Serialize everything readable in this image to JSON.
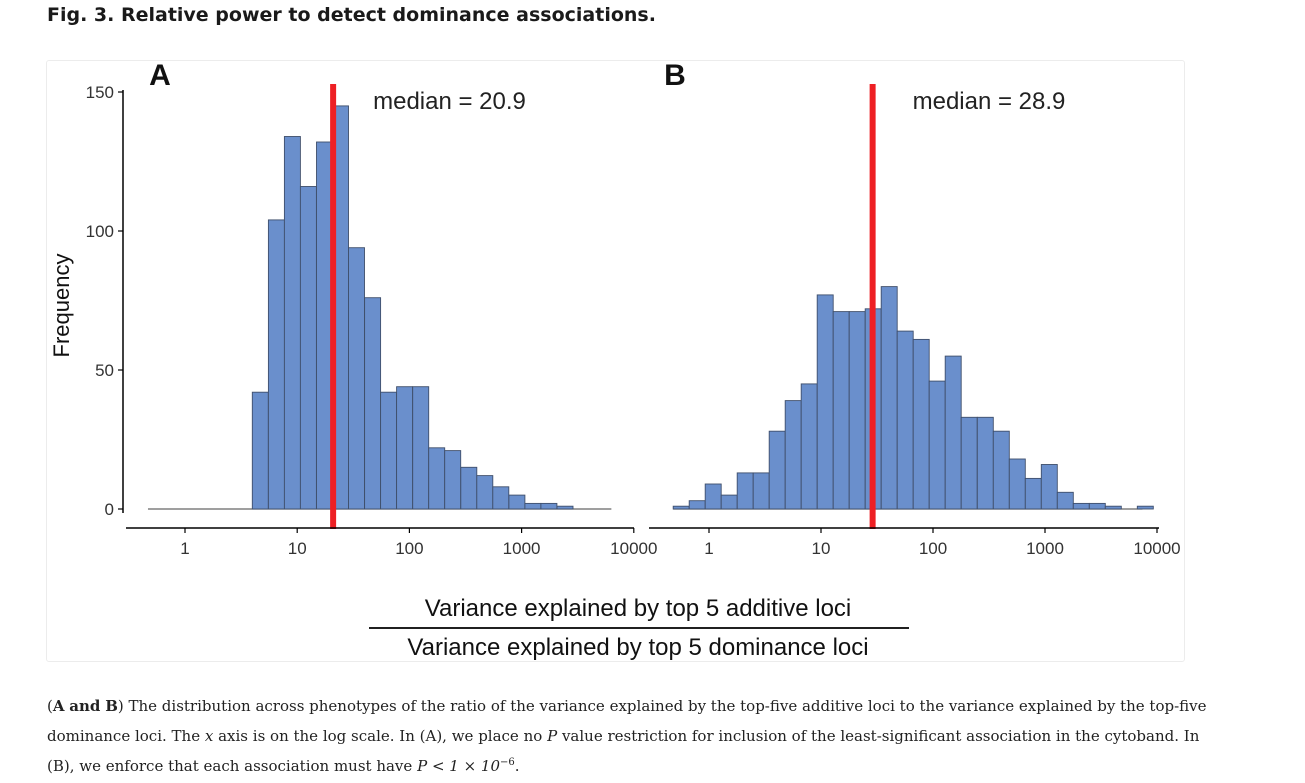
{
  "figure": {
    "title": "Fig. 3. Relative power to detect dominance associations."
  },
  "chart_data": {
    "type": "histogram",
    "ylabel": "Frequency",
    "xlabel_numerator": "Variance explained by top 5 additive loci",
    "xlabel_denominator": "Variance explained by top 5 dominance loci",
    "xscale": "log10",
    "ylim": [
      0,
      150
    ],
    "yticks": [
      0,
      50,
      100,
      150
    ],
    "bar_color": "#6a8fcc",
    "median_color": "#ee2024",
    "panels": [
      {
        "label": "A",
        "median": 20.9,
        "median_label": "median = 20.9",
        "xrange_log10": [
          -0.55,
          4.1
        ],
        "xticks": [
          "1",
          "10",
          "100",
          "1000",
          "10000"
        ],
        "baseline_log10": [
          -0.33,
          3.8
        ],
        "bin_width_log10": 0.1429,
        "bins_start_log10": 0.6,
        "counts": [
          42,
          104,
          134,
          116,
          132,
          145,
          94,
          76,
          42,
          44,
          44,
          22,
          21,
          15,
          12,
          8,
          5,
          2,
          2,
          1
        ]
      },
      {
        "label": "B",
        "median": 28.9,
        "median_label": "median = 28.9",
        "xrange_log10": [
          -0.55,
          4.0
        ],
        "xticks": [
          "1",
          "10",
          "100",
          "1000",
          "10000"
        ],
        "baseline_log10": [
          -0.32,
          3.87
        ],
        "bin_width_log10": 0.1429,
        "bins_start_log10": -0.32,
        "counts": [
          1,
          3,
          9,
          5,
          13,
          13,
          28,
          39,
          45,
          77,
          71,
          71,
          72,
          80,
          64,
          61,
          46,
          55,
          33,
          33,
          28,
          18,
          11,
          16,
          6,
          2,
          2,
          1,
          0,
          1
        ]
      }
    ]
  },
  "caption": {
    "intro": "The distribution across phenotypes of the ratio of the variance explained by the top-five additive loci to the variance explained by the top-five dominance loci. The",
    "x_symbol": "x",
    "after_x": "axis is on the log scale. In (A), we place no",
    "p_symbol": "P",
    "after_p": "value restriction for inclusion of the least-significant association in the cytoband. In (B), we enforce that each association must have",
    "inequality": "P < 1 × 10",
    "exponent": "−6",
    "panel_a": "A",
    "and_word": "and",
    "panel_b": "B",
    "end": "."
  }
}
